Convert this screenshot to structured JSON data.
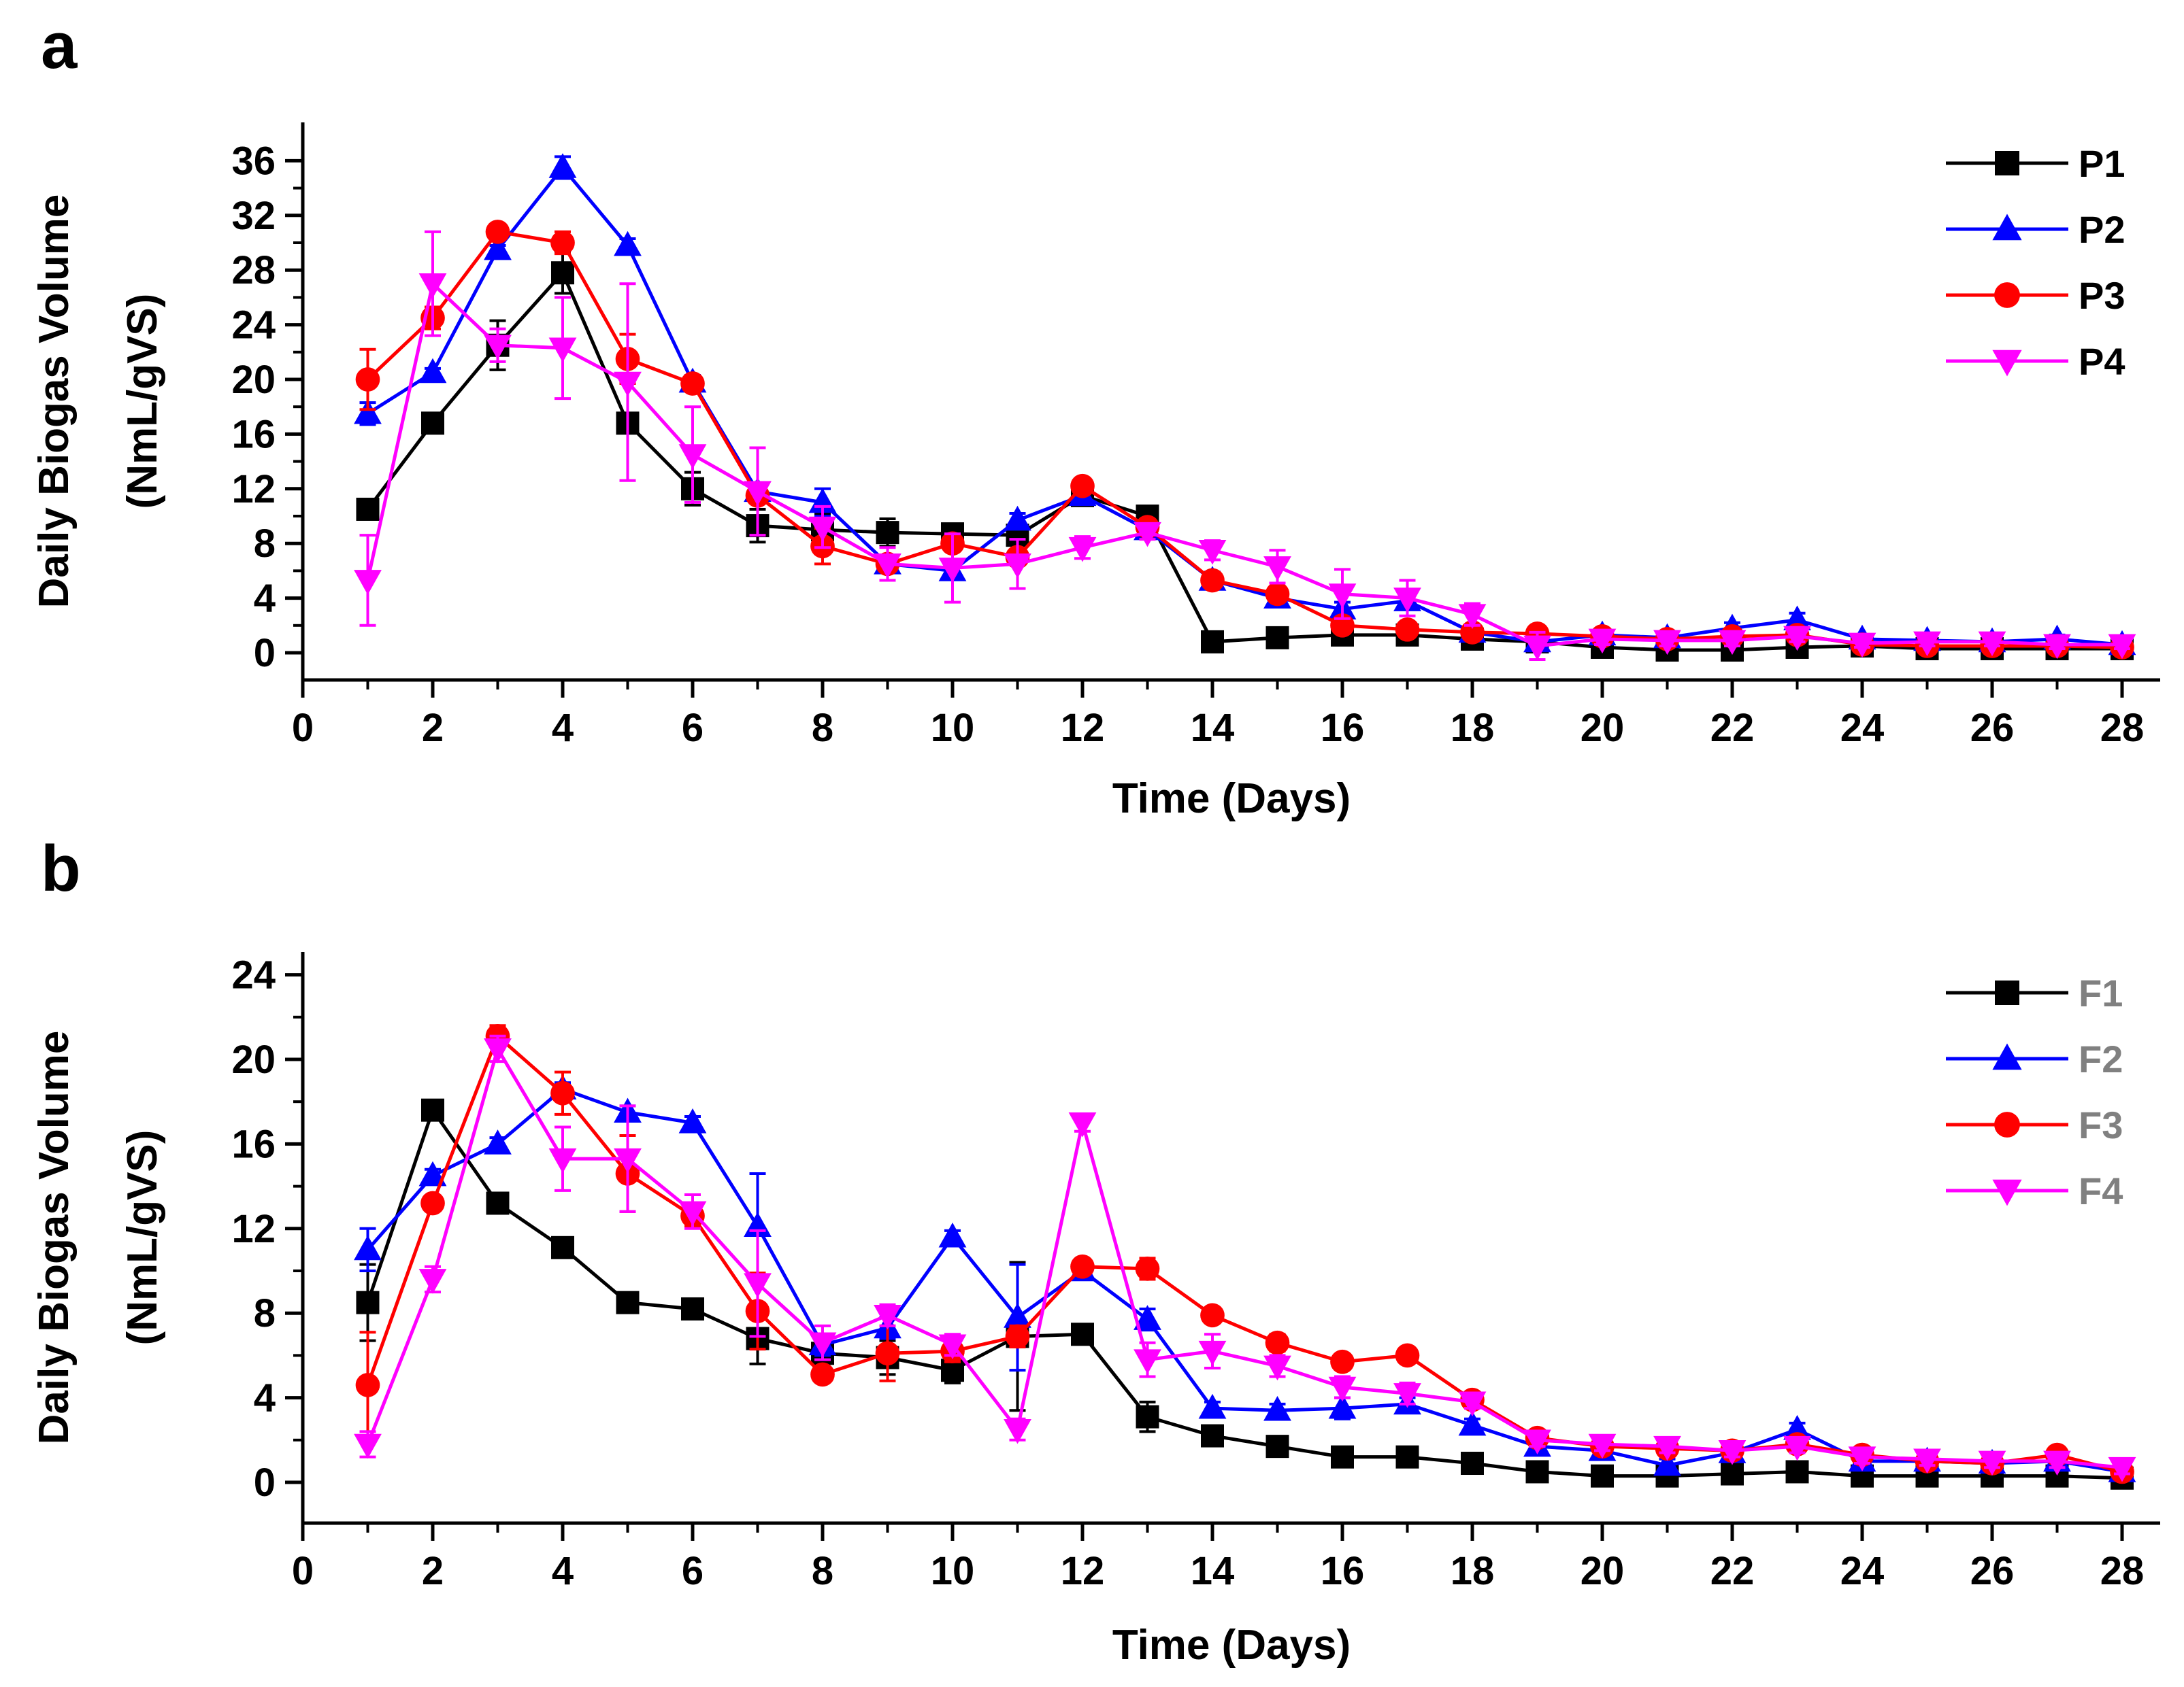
{
  "colors": {
    "black": "#000000",
    "blue": "#0000ff",
    "red": "#ff0000",
    "magenta": "#ff00ff",
    "gray": "#808080"
  },
  "chart_data": [
    {
      "panel_label": "a",
      "type": "line",
      "xlabel": "Time (Days)",
      "ylabel": [
        "Daily Biogas Volume",
        "(NmL/gVS)"
      ],
      "xlim": [
        0,
        28
      ],
      "ylim": [
        -2,
        38
      ],
      "xticks": [
        0,
        2,
        4,
        6,
        8,
        10,
        12,
        14,
        16,
        18,
        20,
        22,
        24,
        26,
        28
      ],
      "xtick_labels": [
        "0",
        "2",
        "4",
        "6",
        "8",
        "10",
        "12",
        "14",
        "16",
        "18",
        "20",
        "22",
        "24",
        "26",
        "28"
      ],
      "yticks": [
        0,
        4,
        8,
        12,
        16,
        20,
        24,
        28,
        32,
        36
      ],
      "ytick_labels": [
        "0",
        "4",
        "8",
        "12",
        "16",
        "20",
        "24",
        "28",
        "32",
        "36"
      ],
      "legend_position": "top-right",
      "x": [
        1,
        2,
        3,
        4,
        5,
        6,
        7,
        8,
        9,
        10,
        11,
        12,
        13,
        14,
        15,
        16,
        17,
        18,
        19,
        20,
        21,
        22,
        23,
        24,
        25,
        26,
        27,
        28
      ],
      "series": [
        {
          "name": "P1",
          "color": "#000000",
          "marker": "square",
          "label_color": "#000000",
          "values": [
            10.5,
            16.8,
            22.5,
            27.8,
            16.8,
            12,
            9.3,
            9,
            8.8,
            8.7,
            8.6,
            11.5,
            10,
            0.8,
            1.1,
            1.3,
            1.3,
            1,
            0.8,
            0.4,
            0.2,
            0.2,
            0.4,
            0.5,
            0.3,
            0.3,
            0.3,
            0.3
          ],
          "errors": [
            0.3,
            0.4,
            1.8,
            1.5,
            0.5,
            1.2,
            1.2,
            1.2,
            1,
            0.3,
            0.4,
            0.3,
            0.5,
            0.3,
            0.4,
            0.4,
            0.4,
            0.4,
            0.3,
            0.3,
            0.3,
            0.3,
            0.4,
            0.3,
            0.3,
            0.3,
            0.3,
            0.3
          ]
        },
        {
          "name": "P2",
          "color": "#0000ff",
          "marker": "triangle-up",
          "label_color": "#000000",
          "values": [
            17.5,
            20.5,
            29.5,
            35.5,
            29.8,
            19.8,
            11.8,
            11,
            6.5,
            6,
            9.7,
            11.5,
            9,
            5.3,
            4,
            3.2,
            3.8,
            1.5,
            0.8,
            1.3,
            1.1,
            1.8,
            2.4,
            1,
            0.9,
            0.8,
            1,
            0.6
          ],
          "errors": [
            0.8,
            0.3,
            0.3,
            0.8,
            0.5,
            0.5,
            0.5,
            1,
            0.6,
            0.5,
            0.5,
            0.3,
            0.4,
            0.6,
            0.5,
            0.5,
            0.4,
            0.4,
            0.4,
            0.3,
            0.4,
            0.4,
            0.5,
            0.3,
            0.3,
            0.3,
            0.3,
            0.3
          ]
        },
        {
          "name": "P3",
          "color": "#ff0000",
          "marker": "circle",
          "label_color": "#000000",
          "values": [
            20,
            24.5,
            30.8,
            30,
            21.5,
            19.7,
            11.5,
            7.8,
            6.5,
            8,
            7,
            12.2,
            9.2,
            5.3,
            4.3,
            2,
            1.7,
            1.5,
            1.4,
            1.2,
            1,
            1.2,
            1.3,
            0.6,
            0.5,
            0.5,
            0.5,
            0.4
          ],
          "errors": [
            2.2,
            0.8,
            0.5,
            0.8,
            1.8,
            0.5,
            0.5,
            1.3,
            0.5,
            0.5,
            0.5,
            0.3,
            0.5,
            0.5,
            0.5,
            0.5,
            0.4,
            0.3,
            0.3,
            0.3,
            0.3,
            0.3,
            0.3,
            0.3,
            0.3,
            0.3,
            0.3,
            0.3
          ]
        },
        {
          "name": "P4",
          "color": "#ff00ff",
          "marker": "triangle-down",
          "label_color": "#000000",
          "values": [
            5.3,
            27,
            22.5,
            22.3,
            19.8,
            14.5,
            11.8,
            9.2,
            6.5,
            6.2,
            6.5,
            7.7,
            8.8,
            7.5,
            6.3,
            4.3,
            4,
            2.8,
            0.5,
            1,
            0.9,
            0.9,
            1.2,
            0.7,
            0.8,
            0.8,
            0.6,
            0.6
          ],
          "errors": [
            3.3,
            3.8,
            1.2,
            3.7,
            7.2,
            3.5,
            3.2,
            1.5,
            1.2,
            2.5,
            1.8,
            0.8,
            0.5,
            0.7,
            1.2,
            1.8,
            1.3,
            0.8,
            1,
            0.4,
            0.4,
            0.4,
            0.4,
            0.3,
            0.3,
            0.3,
            0.3,
            0.3
          ]
        }
      ]
    },
    {
      "panel_label": "b",
      "type": "line",
      "xlabel": "Time (Days)",
      "ylabel": [
        "Daily Biogas Volume",
        "(NmL/gVS)"
      ],
      "xlim": [
        0,
        28
      ],
      "ylim": [
        -2,
        24.5
      ],
      "xticks": [
        0,
        2,
        4,
        6,
        8,
        10,
        12,
        14,
        16,
        18,
        20,
        22,
        24,
        26,
        28
      ],
      "xtick_labels": [
        "0",
        "2",
        "4",
        "6",
        "8",
        "10",
        "12",
        "14",
        "16",
        "18",
        "20",
        "22",
        "24",
        "26",
        "28"
      ],
      "yticks": [
        0,
        4,
        8,
        12,
        16,
        20,
        24
      ],
      "ytick_labels": [
        "0",
        "4",
        "8",
        "12",
        "16",
        "20",
        "24"
      ],
      "legend_position": "top-right",
      "x": [
        1,
        2,
        3,
        4,
        5,
        6,
        7,
        8,
        9,
        10,
        11,
        12,
        13,
        14,
        15,
        16,
        17,
        18,
        19,
        20,
        21,
        22,
        23,
        24,
        25,
        26,
        27,
        28
      ],
      "series": [
        {
          "name": "F1",
          "color": "#000000",
          "marker": "square",
          "label_color": "#808080",
          "values": [
            8.5,
            17.6,
            13.2,
            11.1,
            8.5,
            8.2,
            6.8,
            6.1,
            5.9,
            5.3,
            6.9,
            7,
            3.1,
            2.2,
            1.7,
            1.2,
            1.2,
            0.9,
            0.5,
            0.3,
            0.3,
            0.4,
            0.5,
            0.3,
            0.3,
            0.3,
            0.3,
            0.2
          ],
          "errors": [
            1.8,
            0.3,
            0.3,
            0.3,
            0.3,
            0.3,
            1.2,
            0.3,
            0.8,
            0.6,
            3.5,
            0.2,
            0.7,
            0.3,
            0.3,
            0.3,
            0.3,
            0.3,
            0.3,
            0.3,
            0.3,
            0.3,
            0.3,
            0.3,
            0.3,
            0.3,
            0.3,
            0.3
          ]
        },
        {
          "name": "F2",
          "color": "#0000ff",
          "marker": "triangle-up",
          "label_color": "#808080",
          "values": [
            11,
            14.5,
            16,
            18.6,
            17.5,
            17,
            12.1,
            6.5,
            7.3,
            11.6,
            7.8,
            10,
            7.7,
            3.5,
            3.4,
            3.5,
            3.7,
            2.7,
            1.7,
            1.5,
            0.8,
            1.4,
            2.5,
            1,
            1,
            0.9,
            1,
            0.5
          ],
          "errors": [
            1,
            0.3,
            0.3,
            0.3,
            0.3,
            0.3,
            2.5,
            0.5,
            0.5,
            0.3,
            2.5,
            0.3,
            0.5,
            0.3,
            0.3,
            0.5,
            0.3,
            0.3,
            0.3,
            0.3,
            0.3,
            0.3,
            0.3,
            0.3,
            0.3,
            0.3,
            0.3,
            0.3
          ]
        },
        {
          "name": "F3",
          "color": "#ff0000",
          "marker": "circle",
          "label_color": "#808080",
          "values": [
            4.6,
            13.2,
            21.1,
            18.4,
            14.6,
            12.6,
            8.1,
            5.1,
            6.1,
            6.2,
            6.9,
            10.2,
            10.1,
            7.9,
            6.6,
            5.7,
            6,
            3.9,
            2.1,
            1.7,
            1.6,
            1.5,
            1.8,
            1.3,
            1,
            0.9,
            1.3,
            0.5
          ],
          "errors": [
            2.5,
            0.3,
            0.5,
            1,
            1.8,
            0.5,
            1.8,
            0.3,
            1.3,
            0.5,
            0.5,
            0.3,
            0.5,
            0.3,
            0.4,
            0.3,
            0.3,
            0.3,
            0.3,
            0.3,
            0.3,
            0.3,
            0.3,
            0.3,
            0.3,
            0.3,
            0.3,
            0.3
          ]
        },
        {
          "name": "F4",
          "color": "#ff00ff",
          "marker": "triangle-down",
          "label_color": "#808080",
          "values": [
            1.8,
            9.6,
            20.5,
            15.3,
            15.3,
            12.8,
            9.4,
            6.6,
            7.9,
            6.5,
            2.5,
            17,
            5.8,
            6.2,
            5.5,
            4.5,
            4.2,
            3.8,
            2,
            1.8,
            1.7,
            1.5,
            1.7,
            1.2,
            1.1,
            1,
            1,
            0.7
          ],
          "errors": [
            0.6,
            0.6,
            0.6,
            1.5,
            2.5,
            0.8,
            2.5,
            0.8,
            0.5,
            0.5,
            0.5,
            0.4,
            0.8,
            0.8,
            0.5,
            0.5,
            0.5,
            0.3,
            0.3,
            0.3,
            0.3,
            0.3,
            0.3,
            0.3,
            0.3,
            0.3,
            0.3,
            0.3
          ]
        }
      ]
    }
  ]
}
